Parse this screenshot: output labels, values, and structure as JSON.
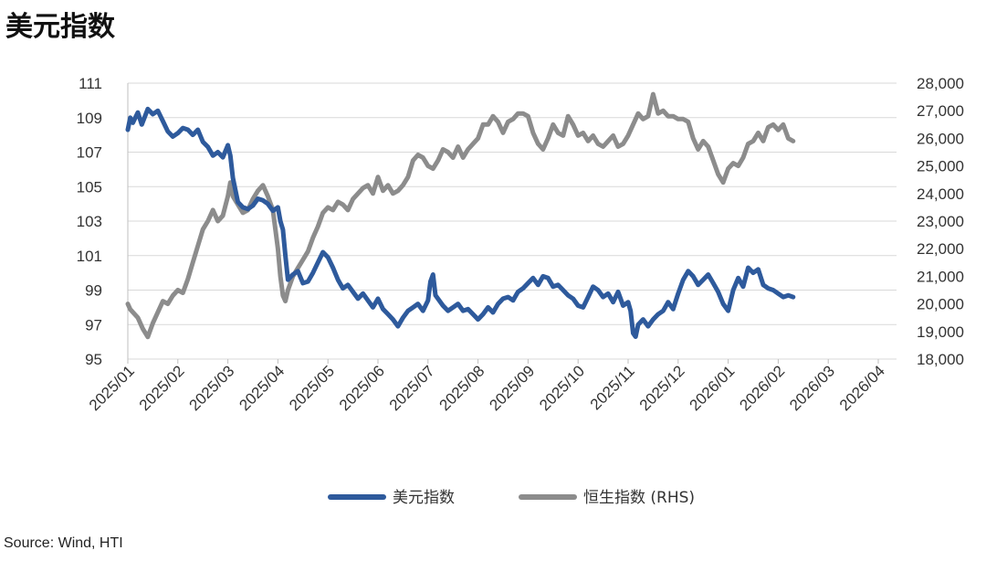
{
  "chart_data": {
    "type": "line",
    "title": "美元指数",
    "source": "Source: Wind, HTI",
    "y_left": {
      "min": 95,
      "max": 111,
      "ticks": [
        "111",
        "109",
        "107",
        "105",
        "103",
        "101",
        "99",
        "97",
        "95"
      ],
      "tick_values": [
        111,
        109,
        107,
        105,
        103,
        101,
        99,
        97,
        95
      ]
    },
    "y_right": {
      "min": 18000,
      "max": 28000,
      "ticks": [
        "28,000",
        "27,000",
        "26,000",
        "25,000",
        "24,000",
        "23,000",
        "22,000",
        "21,000",
        "20,000",
        "19,000",
        "18,000"
      ],
      "tick_values": [
        28000,
        27000,
        26000,
        25000,
        24000,
        23000,
        22000,
        21000,
        20000,
        19000,
        18000
      ]
    },
    "x_ticks": [
      "2025/01",
      "2025/02",
      "2025/03",
      "2025/04",
      "2025/05",
      "2025/06",
      "2025/07",
      "2025/08",
      "2025/09",
      "2025/10",
      "2025/11",
      "2025/12",
      "2026/01",
      "2026/02",
      "2026/03",
      "2026/04"
    ],
    "grid": true,
    "legend_position": "bottom",
    "series": [
      {
        "name": "美元指数",
        "axis": "left",
        "color": "#2e5a9c",
        "points": [
          [
            0,
            108.3
          ],
          [
            0.05,
            109.0
          ],
          [
            0.1,
            108.7
          ],
          [
            0.2,
            109.3
          ],
          [
            0.28,
            108.6
          ],
          [
            0.4,
            109.5
          ],
          [
            0.5,
            109.2
          ],
          [
            0.6,
            109.4
          ],
          [
            0.7,
            108.8
          ],
          [
            0.8,
            108.2
          ],
          [
            0.9,
            107.9
          ],
          [
            1.0,
            108.1
          ],
          [
            1.1,
            108.4
          ],
          [
            1.2,
            108.3
          ],
          [
            1.3,
            108.0
          ],
          [
            1.4,
            108.3
          ],
          [
            1.5,
            107.6
          ],
          [
            1.6,
            107.3
          ],
          [
            1.7,
            106.8
          ],
          [
            1.8,
            107.0
          ],
          [
            1.9,
            106.7
          ],
          [
            2.0,
            107.4
          ],
          [
            2.05,
            106.8
          ],
          [
            2.1,
            105.5
          ],
          [
            2.2,
            104.1
          ],
          [
            2.3,
            103.8
          ],
          [
            2.4,
            103.7
          ],
          [
            2.5,
            103.9
          ],
          [
            2.6,
            104.3
          ],
          [
            2.7,
            104.2
          ],
          [
            2.8,
            104.0
          ],
          [
            2.9,
            103.6
          ],
          [
            3.0,
            103.8
          ],
          [
            3.05,
            103.0
          ],
          [
            3.1,
            102.5
          ],
          [
            3.15,
            101.0
          ],
          [
            3.2,
            99.6
          ],
          [
            3.3,
            99.9
          ],
          [
            3.4,
            100.1
          ],
          [
            3.5,
            99.4
          ],
          [
            3.6,
            99.5
          ],
          [
            3.7,
            100.0
          ],
          [
            3.8,
            100.6
          ],
          [
            3.9,
            101.2
          ],
          [
            4.0,
            100.9
          ],
          [
            4.1,
            100.3
          ],
          [
            4.2,
            99.6
          ],
          [
            4.3,
            99.1
          ],
          [
            4.4,
            99.3
          ],
          [
            4.5,
            98.9
          ],
          [
            4.6,
            98.5
          ],
          [
            4.7,
            98.8
          ],
          [
            4.8,
            98.4
          ],
          [
            4.9,
            98.0
          ],
          [
            5.0,
            98.5
          ],
          [
            5.1,
            97.9
          ],
          [
            5.2,
            97.6
          ],
          [
            5.3,
            97.3
          ],
          [
            5.4,
            96.9
          ],
          [
            5.5,
            97.4
          ],
          [
            5.6,
            97.8
          ],
          [
            5.7,
            98.0
          ],
          [
            5.8,
            98.2
          ],
          [
            5.9,
            97.8
          ],
          [
            6.0,
            98.4
          ],
          [
            6.05,
            99.5
          ],
          [
            6.1,
            99.9
          ],
          [
            6.15,
            98.7
          ],
          [
            6.3,
            98.1
          ],
          [
            6.4,
            97.8
          ],
          [
            6.5,
            98.0
          ],
          [
            6.6,
            98.2
          ],
          [
            6.7,
            97.8
          ],
          [
            6.8,
            97.9
          ],
          [
            6.9,
            97.6
          ],
          [
            7.0,
            97.3
          ],
          [
            7.1,
            97.6
          ],
          [
            7.2,
            98.0
          ],
          [
            7.3,
            97.7
          ],
          [
            7.4,
            98.2
          ],
          [
            7.5,
            98.5
          ],
          [
            7.6,
            98.6
          ],
          [
            7.7,
            98.4
          ],
          [
            7.8,
            98.9
          ],
          [
            7.9,
            99.1
          ],
          [
            8.0,
            99.4
          ],
          [
            8.1,
            99.7
          ],
          [
            8.2,
            99.3
          ],
          [
            8.3,
            99.8
          ],
          [
            8.4,
            99.7
          ],
          [
            8.5,
            99.2
          ],
          [
            8.6,
            99.3
          ],
          [
            8.7,
            99.0
          ],
          [
            8.8,
            98.7
          ],
          [
            8.9,
            98.5
          ],
          [
            9.0,
            98.1
          ],
          [
            9.1,
            98.0
          ],
          [
            9.2,
            98.6
          ],
          [
            9.3,
            99.2
          ],
          [
            9.4,
            99.0
          ],
          [
            9.5,
            98.6
          ],
          [
            9.6,
            98.8
          ],
          [
            9.7,
            98.3
          ],
          [
            9.8,
            98.9
          ],
          [
            9.9,
            98.1
          ],
          [
            10.0,
            98.3
          ],
          [
            10.05,
            97.8
          ],
          [
            10.1,
            96.5
          ],
          [
            10.15,
            96.3
          ],
          [
            10.2,
            97.0
          ],
          [
            10.3,
            97.3
          ],
          [
            10.4,
            96.9
          ],
          [
            10.5,
            97.3
          ],
          [
            10.6,
            97.6
          ],
          [
            10.7,
            97.8
          ],
          [
            10.8,
            98.3
          ],
          [
            10.9,
            97.9
          ],
          [
            11.0,
            98.8
          ],
          [
            11.1,
            99.6
          ],
          [
            11.2,
            100.1
          ],
          [
            11.3,
            99.8
          ],
          [
            11.4,
            99.3
          ],
          [
            11.5,
            99.6
          ],
          [
            11.6,
            99.9
          ],
          [
            11.7,
            99.4
          ],
          [
            11.8,
            98.9
          ],
          [
            11.9,
            98.2
          ],
          [
            12.0,
            97.8
          ],
          [
            12.1,
            99.0
          ],
          [
            12.2,
            99.7
          ],
          [
            12.3,
            99.2
          ],
          [
            12.4,
            100.3
          ],
          [
            12.5,
            100.0
          ],
          [
            12.6,
            100.2
          ],
          [
            12.7,
            99.3
          ],
          [
            12.8,
            99.1
          ],
          [
            12.9,
            99.0
          ],
          [
            13.0,
            98.8
          ],
          [
            13.1,
            98.6
          ],
          [
            13.2,
            98.7
          ],
          [
            13.3,
            98.6
          ]
        ]
      },
      {
        "name": "恒生指数 (RHS)",
        "axis": "right",
        "color": "#8c8c8c",
        "points": [
          [
            0,
            20000
          ],
          [
            0.05,
            19800
          ],
          [
            0.1,
            19700
          ],
          [
            0.2,
            19500
          ],
          [
            0.3,
            19100
          ],
          [
            0.4,
            18800
          ],
          [
            0.5,
            19300
          ],
          [
            0.6,
            19700
          ],
          [
            0.7,
            20100
          ],
          [
            0.8,
            20000
          ],
          [
            0.9,
            20300
          ],
          [
            1.0,
            20500
          ],
          [
            1.1,
            20400
          ],
          [
            1.2,
            20900
          ],
          [
            1.3,
            21500
          ],
          [
            1.4,
            22100
          ],
          [
            1.5,
            22700
          ],
          [
            1.6,
            23000
          ],
          [
            1.7,
            23400
          ],
          [
            1.8,
            23000
          ],
          [
            1.9,
            23200
          ],
          [
            2.0,
            23900
          ],
          [
            2.05,
            24400
          ],
          [
            2.1,
            23900
          ],
          [
            2.2,
            23600
          ],
          [
            2.3,
            23300
          ],
          [
            2.4,
            23400
          ],
          [
            2.5,
            23800
          ],
          [
            2.6,
            24100
          ],
          [
            2.7,
            24300
          ],
          [
            2.8,
            23900
          ],
          [
            2.9,
            23400
          ],
          [
            3.0,
            22000
          ],
          [
            3.05,
            21000
          ],
          [
            3.1,
            20300
          ],
          [
            3.15,
            20100
          ],
          [
            3.2,
            20500
          ],
          [
            3.3,
            21000
          ],
          [
            3.4,
            21300
          ],
          [
            3.5,
            21600
          ],
          [
            3.6,
            21900
          ],
          [
            3.7,
            22400
          ],
          [
            3.8,
            22800
          ],
          [
            3.9,
            23300
          ],
          [
            4.0,
            23500
          ],
          [
            4.1,
            23400
          ],
          [
            4.2,
            23700
          ],
          [
            4.3,
            23600
          ],
          [
            4.4,
            23400
          ],
          [
            4.5,
            23800
          ],
          [
            4.6,
            24000
          ],
          [
            4.7,
            24200
          ],
          [
            4.8,
            24300
          ],
          [
            4.9,
            24000
          ],
          [
            5.0,
            24600
          ],
          [
            5.1,
            24100
          ],
          [
            5.2,
            24300
          ],
          [
            5.3,
            24000
          ],
          [
            5.4,
            24100
          ],
          [
            5.5,
            24300
          ],
          [
            5.6,
            24600
          ],
          [
            5.7,
            25200
          ],
          [
            5.8,
            25400
          ],
          [
            5.9,
            25300
          ],
          [
            6.0,
            25000
          ],
          [
            6.1,
            24900
          ],
          [
            6.2,
            25200
          ],
          [
            6.3,
            25600
          ],
          [
            6.4,
            25500
          ],
          [
            6.5,
            25300
          ],
          [
            6.6,
            25700
          ],
          [
            6.7,
            25300
          ],
          [
            6.8,
            25600
          ],
          [
            6.9,
            25800
          ],
          [
            7.0,
            26000
          ],
          [
            7.1,
            26500
          ],
          [
            7.2,
            26500
          ],
          [
            7.3,
            26800
          ],
          [
            7.4,
            26600
          ],
          [
            7.5,
            26200
          ],
          [
            7.6,
            26600
          ],
          [
            7.7,
            26700
          ],
          [
            7.8,
            26900
          ],
          [
            7.9,
            26900
          ],
          [
            8.0,
            26800
          ],
          [
            8.1,
            26200
          ],
          [
            8.2,
            25800
          ],
          [
            8.3,
            25600
          ],
          [
            8.4,
            26000
          ],
          [
            8.5,
            26500
          ],
          [
            8.6,
            26200
          ],
          [
            8.7,
            26100
          ],
          [
            8.8,
            26800
          ],
          [
            8.9,
            26500
          ],
          [
            9.0,
            26100
          ],
          [
            9.1,
            26200
          ],
          [
            9.2,
            25900
          ],
          [
            9.3,
            26100
          ],
          [
            9.4,
            25800
          ],
          [
            9.5,
            25700
          ],
          [
            9.6,
            25900
          ],
          [
            9.7,
            26100
          ],
          [
            9.8,
            25700
          ],
          [
            9.9,
            25800
          ],
          [
            10.0,
            26100
          ],
          [
            10.1,
            26500
          ],
          [
            10.2,
            26900
          ],
          [
            10.3,
            26700
          ],
          [
            10.4,
            26800
          ],
          [
            10.5,
            27600
          ],
          [
            10.6,
            26900
          ],
          [
            10.7,
            27000
          ],
          [
            10.8,
            26800
          ],
          [
            10.9,
            26800
          ],
          [
            11.0,
            26700
          ],
          [
            11.1,
            26700
          ],
          [
            11.2,
            26600
          ],
          [
            11.3,
            26000
          ],
          [
            11.4,
            25600
          ],
          [
            11.5,
            25900
          ],
          [
            11.6,
            25700
          ],
          [
            11.7,
            25200
          ],
          [
            11.8,
            24700
          ],
          [
            11.9,
            24400
          ],
          [
            12.0,
            24900
          ],
          [
            12.1,
            25100
          ],
          [
            12.2,
            25000
          ],
          [
            12.3,
            25300
          ],
          [
            12.4,
            25800
          ],
          [
            12.5,
            25900
          ],
          [
            12.6,
            26200
          ],
          [
            12.7,
            25900
          ],
          [
            12.8,
            26400
          ],
          [
            12.9,
            26500
          ],
          [
            13.0,
            26300
          ],
          [
            13.1,
            26500
          ],
          [
            13.2,
            26000
          ],
          [
            13.3,
            25900
          ]
        ]
      }
    ]
  }
}
